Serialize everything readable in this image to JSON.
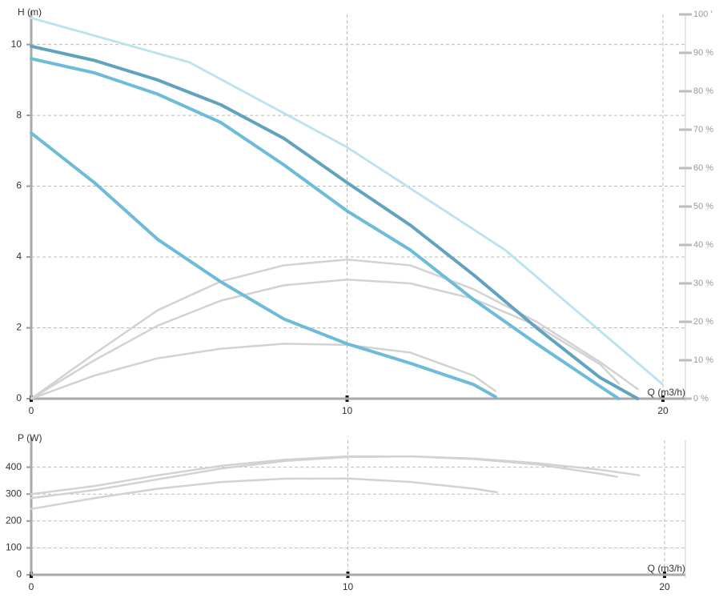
{
  "chart_data": [
    {
      "type": "line",
      "y_label": "H (m)",
      "x_label": "Q (m3/h)",
      "xlim": [
        0,
        20.7
      ],
      "xticks": [
        0,
        10,
        20
      ],
      "ylim": [
        0,
        10.85
      ],
      "yticks": [
        0,
        2,
        4,
        6,
        8,
        10
      ],
      "y2lim": [
        0,
        100
      ],
      "y2ticks": [
        {
          "value": 0,
          "label": "0 %"
        },
        {
          "value": 10,
          "label": "10 %"
        },
        {
          "value": 20,
          "label": "20 %"
        },
        {
          "value": 30,
          "label": "30 %"
        },
        {
          "value": 40,
          "label": "40 %"
        },
        {
          "value": 50,
          "label": "50 %"
        },
        {
          "value": 60,
          "label": "60 %"
        },
        {
          "value": 70,
          "label": "70 %"
        },
        {
          "value": 80,
          "label": "80 %"
        },
        {
          "value": 90,
          "label": "90 %"
        },
        {
          "value": 100,
          "label": "100 '"
        }
      ],
      "grid": true,
      "series": [
        {
          "color": "#b9e3ee",
          "style": "dotted",
          "x": [
            0,
            5,
            10,
            15,
            20
          ],
          "values": [
            10.75,
            9.5,
            7.1,
            4.2,
            0.4
          ]
        },
        {
          "color": "#d2d2d2",
          "axis": "y2",
          "x": [
            0,
            2,
            4,
            6,
            8,
            10,
            12,
            14,
            16,
            18,
            19.2
          ],
          "values": [
            0,
            11.7,
            23,
            30.5,
            34.7,
            36.2,
            34.7,
            28.5,
            20,
            9.6,
            2.5
          ]
        },
        {
          "color": "#d2d2d2",
          "axis": "y2",
          "x": [
            0,
            2,
            4,
            6,
            8,
            10,
            12,
            14,
            16,
            18,
            18.6
          ],
          "values": [
            0,
            10,
            19,
            25.5,
            29.5,
            31,
            30,
            26,
            19,
            9,
            4
          ]
        },
        {
          "color": "#d2d2d2",
          "axis": "y2",
          "x": [
            0,
            2,
            4,
            6,
            8,
            10,
            12,
            14,
            14.7
          ],
          "values": [
            0,
            6,
            10.5,
            13,
            14.3,
            14,
            12,
            6,
            2
          ]
        },
        {
          "color": "#5fa3bf",
          "x": [
            0,
            2,
            4,
            6,
            8,
            10,
            12,
            14,
            16,
            18,
            19.2
          ],
          "values": [
            9.95,
            9.55,
            9.0,
            8.3,
            7.35,
            6.1,
            4.9,
            3.5,
            2.0,
            0.6,
            0
          ]
        },
        {
          "color": "#6cbcd9",
          "x": [
            0,
            2,
            4,
            6,
            8,
            10,
            12,
            14,
            16,
            18,
            18.6
          ],
          "values": [
            9.6,
            9.2,
            8.6,
            7.8,
            6.6,
            5.3,
            4.2,
            2.8,
            1.55,
            0.35,
            0
          ]
        },
        {
          "color": "#6cbcd9",
          "x": [
            0,
            2,
            4,
            6,
            8,
            10,
            12,
            14,
            14.7
          ],
          "values": [
            7.5,
            6.1,
            4.5,
            3.3,
            2.25,
            1.55,
            1.0,
            0.4,
            0.05
          ]
        }
      ]
    },
    {
      "type": "line",
      "y_label": "P (W)",
      "x_label": "Q (m3/h)",
      "xlim": [
        0,
        20.7
      ],
      "xticks": [
        0,
        10,
        20
      ],
      "ylim": [
        0,
        500
      ],
      "yticks": [
        0,
        100,
        200,
        300,
        400
      ],
      "grid": true,
      "series": [
        {
          "color": "#d2d2d2",
          "x": [
            0,
            2,
            4,
            6,
            8,
            10,
            12,
            14,
            16,
            18,
            18.5
          ],
          "values": [
            300,
            330,
            370,
            405,
            428,
            440,
            440,
            430,
            410,
            375,
            364
          ]
        },
        {
          "color": "#d2d2d2",
          "x": [
            0,
            2,
            4,
            6,
            8,
            10,
            12,
            14,
            16,
            18,
            19.2
          ],
          "values": [
            285,
            315,
            355,
            395,
            423,
            438,
            440,
            432,
            415,
            390,
            370
          ]
        },
        {
          "color": "#d2d2d2",
          "x": [
            0,
            2,
            4,
            6,
            8,
            10,
            12,
            14,
            14.7
          ],
          "values": [
            245,
            285,
            320,
            345,
            357,
            358,
            345,
            320,
            307
          ]
        }
      ]
    }
  ]
}
